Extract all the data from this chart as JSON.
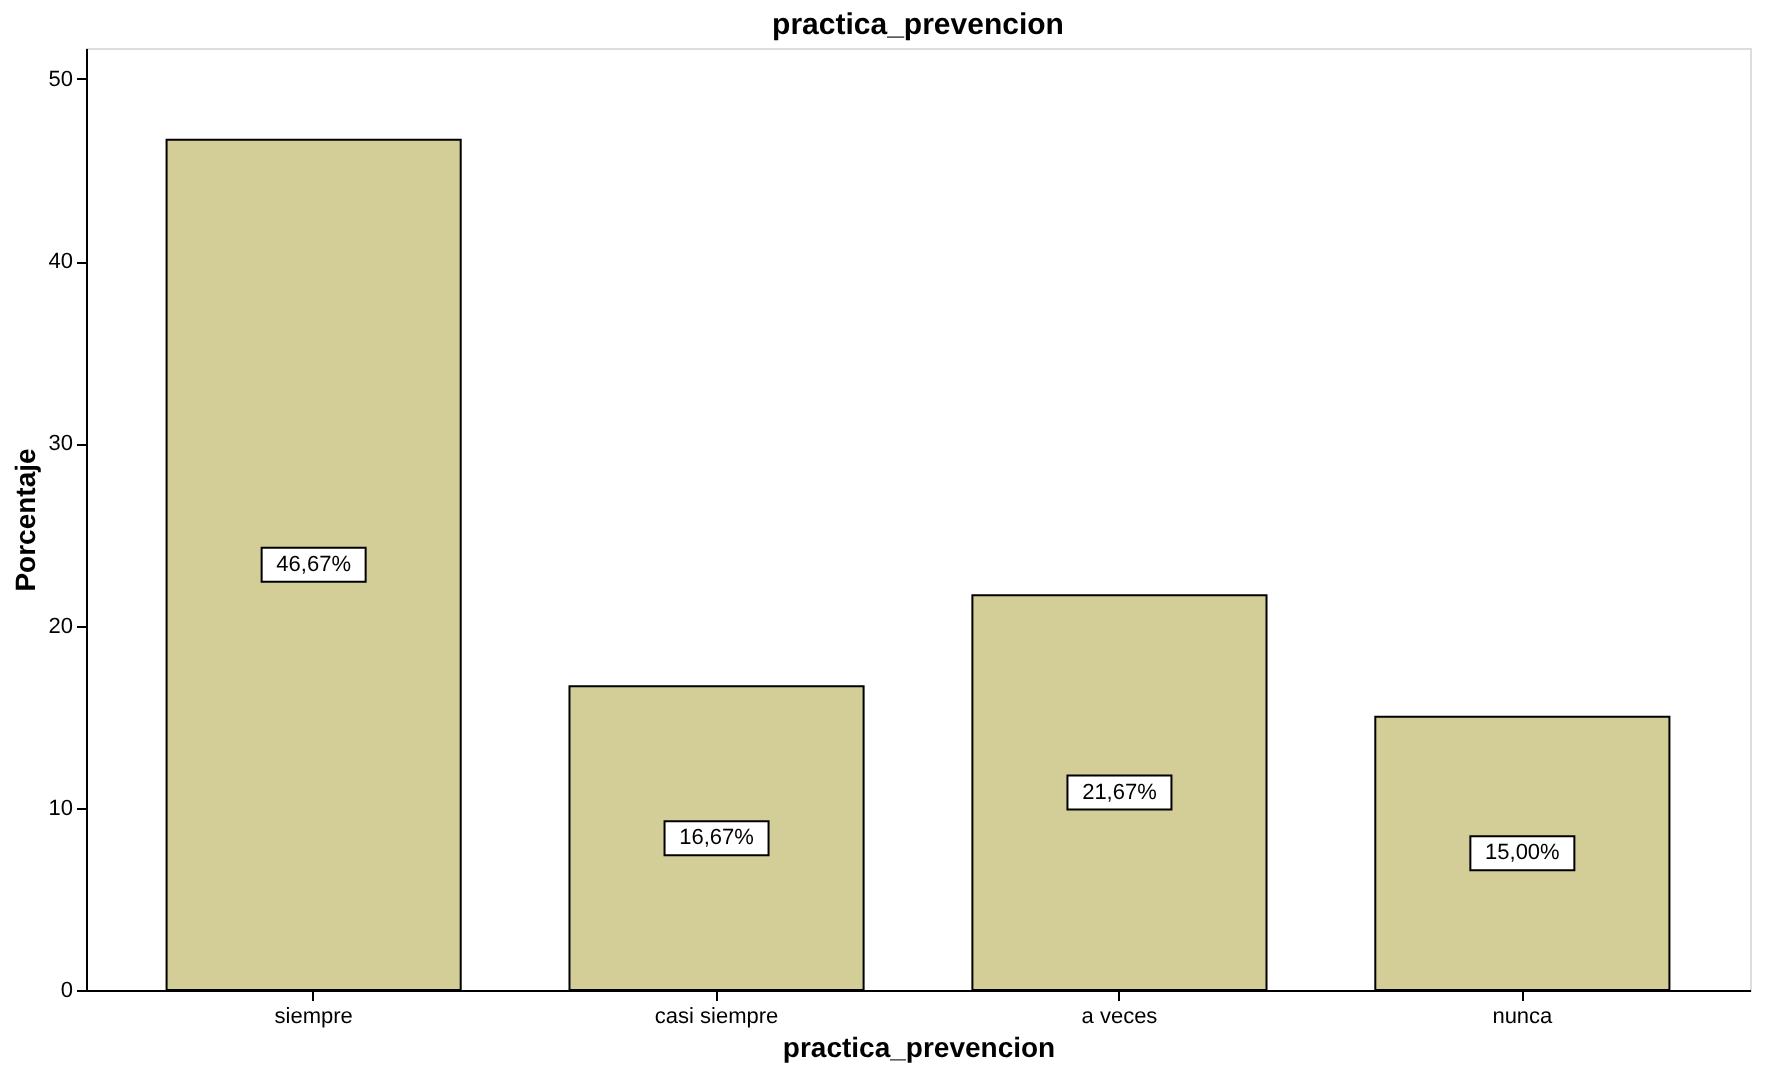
{
  "chart_data": {
    "type": "bar",
    "title": "practica_prevencion",
    "xlabel": "practica_prevencion",
    "ylabel": "Porcentaje",
    "categories": [
      "siempre",
      "casi siempre",
      "a veces",
      "nunca"
    ],
    "values": [
      46.67,
      16.67,
      21.67,
      15.0
    ],
    "value_labels": [
      "46,67%",
      "16,67%",
      "21,67%",
      "15,00%"
    ],
    "color": "#d3ce97",
    "ylim": [
      0,
      51.7
    ],
    "yticks": [
      0,
      10,
      20,
      30,
      40,
      50
    ],
    "grid": false
  }
}
